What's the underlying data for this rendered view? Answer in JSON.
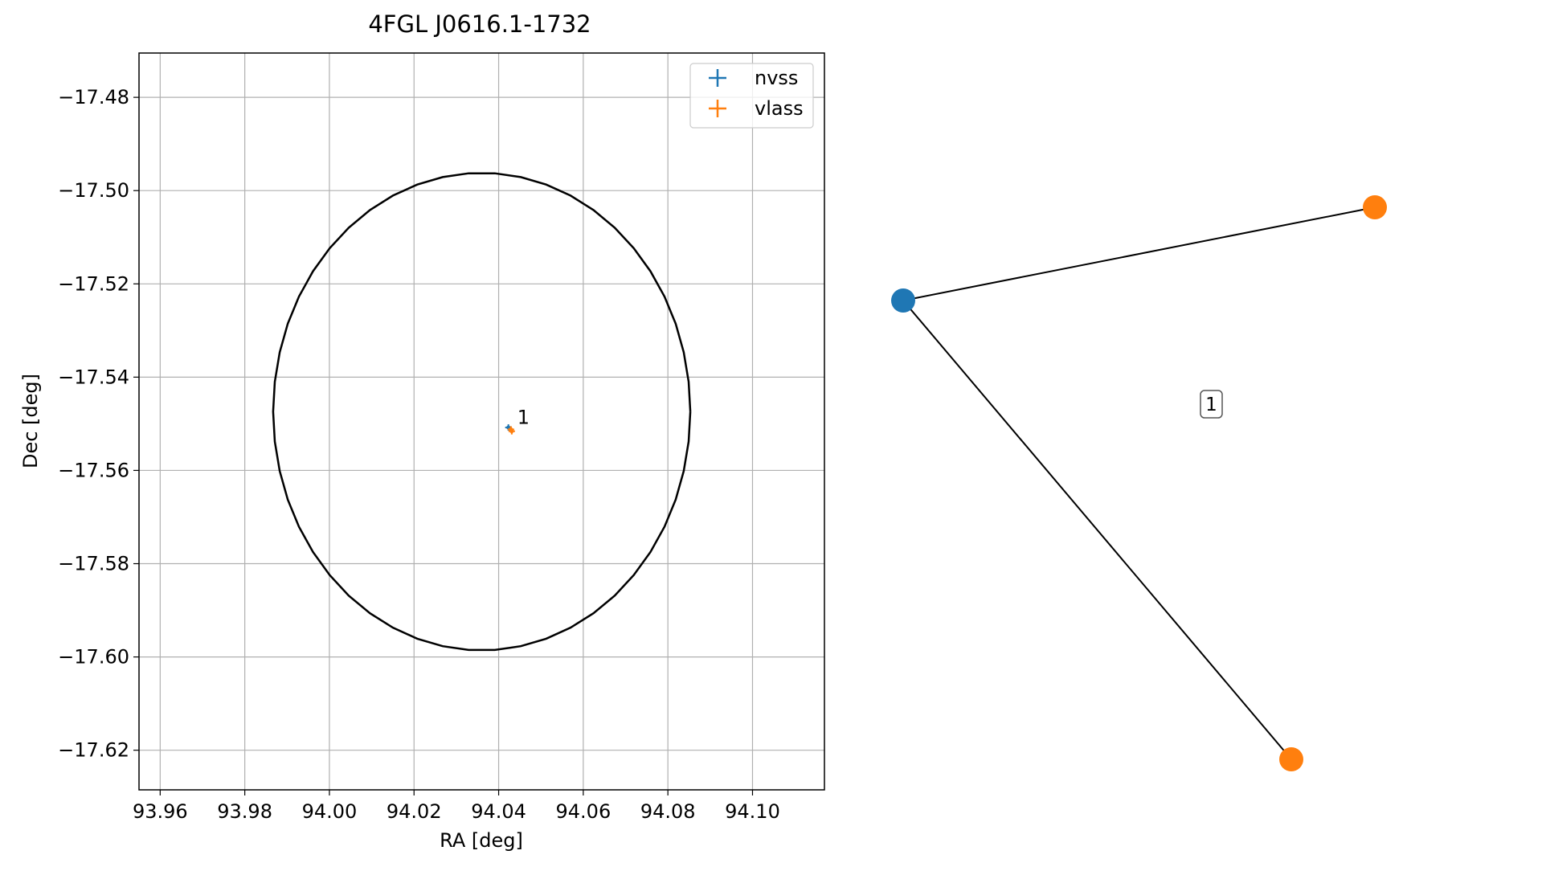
{
  "chart_data": [
    {
      "type": "scatter",
      "title": "4FGL J0616.1-1732",
      "xlabel": "RA [deg]",
      "ylabel": "Dec [deg]",
      "xlim": [
        93.955,
        94.117
      ],
      "ylim": [
        -17.6285,
        -17.4705
      ],
      "xticks": [
        93.96,
        93.98,
        94.0,
        94.02,
        94.04,
        94.06,
        94.08,
        94.1
      ],
      "xtick_labels": [
        "93.96",
        "93.98",
        "94.00",
        "94.02",
        "94.04",
        "94.06",
        "94.08",
        "94.10"
      ],
      "yticks": [
        -17.48,
        -17.5,
        -17.52,
        -17.54,
        -17.56,
        -17.58,
        -17.6,
        -17.62
      ],
      "ytick_labels": [
        "−17.48",
        "−17.50",
        "−17.52",
        "−17.54",
        "−17.56",
        "−17.58",
        "−17.60",
        "−17.62"
      ],
      "grid": true,
      "legend": "top-right",
      "ellipse": {
        "center": [
          94.036,
          -17.5474
        ],
        "ra_semi_axis": 0.0493,
        "dec_semi_axis": 0.0512,
        "color": "#000000"
      },
      "series": [
        {
          "name": "nvss",
          "color": "#1f77b4",
          "points": [
            {
              "x": 94.0423,
              "y": -17.5508
            }
          ]
        },
        {
          "name": "vlass",
          "color": "#ff7f0e",
          "points": [
            {
              "x": 94.0429,
              "y": -17.5512
            },
            {
              "x": 94.0431,
              "y": -17.5516
            }
          ]
        }
      ],
      "annotations": [
        {
          "text": "1",
          "x": 94.0444,
          "y": -17.5486
        }
      ]
    },
    {
      "type": "graph",
      "nodes": [
        {
          "id": "nvss",
          "color": "#1f77b4"
        },
        {
          "id": "vlass-a",
          "color": "#ff7f0e"
        },
        {
          "id": "vlass-b",
          "color": "#ff7f0e"
        }
      ],
      "edges": [
        [
          "nvss",
          "vlass-a"
        ],
        [
          "nvss",
          "vlass-b"
        ]
      ],
      "label": "1"
    }
  ]
}
